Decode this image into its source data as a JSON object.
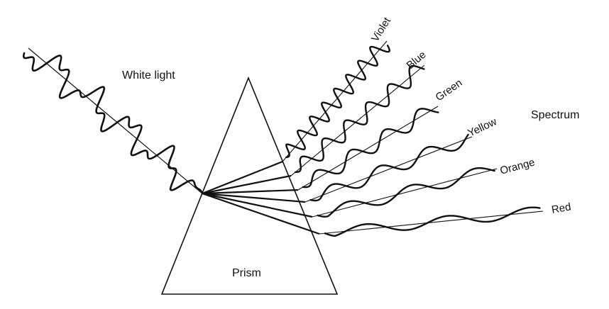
{
  "labels": {
    "white_light": "White light",
    "spectrum": "Spectrum",
    "prism": "Prism"
  },
  "colors": {
    "ink": "#111111",
    "background": "#ffffff"
  },
  "bands": [
    {
      "name": "Violet"
    },
    {
      "name": "Blue"
    },
    {
      "name": "Green"
    },
    {
      "name": "Yellow"
    },
    {
      "name": "Orange"
    },
    {
      "name": "Red"
    }
  ]
}
